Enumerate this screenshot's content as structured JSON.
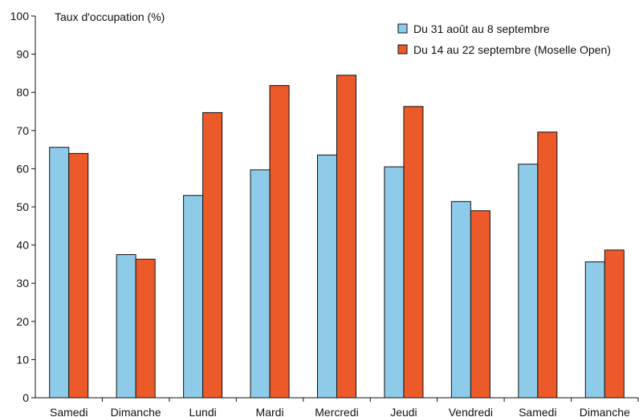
{
  "chart_data": {
    "type": "bar",
    "title": "",
    "ylabel": "Taux d'occupation (%)",
    "xlabel": "",
    "ylim": [
      0,
      100
    ],
    "yticks": [
      0,
      10,
      20,
      30,
      40,
      50,
      60,
      70,
      80,
      90,
      100
    ],
    "grid": false,
    "legend_position": "top-right",
    "categories": [
      "Samedi",
      "Dimanche",
      "Lundi",
      "Mardi",
      "Mercredi",
      "Jeudi",
      "Vendredi",
      "Samedi",
      "Dimanche"
    ],
    "series": [
      {
        "name": "Du 31 août au 8 septembre",
        "color": "#8ecbe9",
        "values": [
          65.6,
          37.5,
          53.0,
          59.7,
          63.6,
          60.5,
          51.4,
          61.2,
          35.6
        ]
      },
      {
        "name": "Du 14 au 22 septembre (Moselle Open)",
        "color": "#ec5a2a",
        "values": [
          64.0,
          36.3,
          74.7,
          81.8,
          84.5,
          76.3,
          49.0,
          69.6,
          38.7
        ]
      }
    ]
  }
}
